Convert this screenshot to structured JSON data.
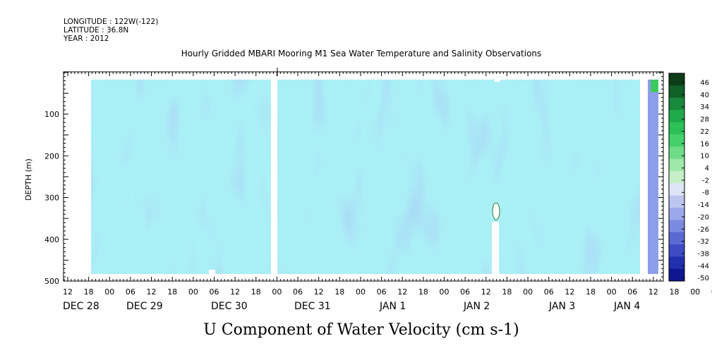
{
  "header": {
    "longitude": "LONGITUDE : 122W(-122)",
    "latitude": "LATITUDE : 36.8N",
    "year": "YEAR : 2012"
  },
  "chart_data": {
    "type": "heatmap",
    "title": "Hourly Gridded MBARI Mooring M1 Sea Water Temperature and Salinity Observations",
    "xlabel": "U Component of Water Velocity (cm s-1)",
    "ylabel": "DEPTH (m)",
    "y_ticks": [
      100,
      200,
      300,
      400,
      500
    ],
    "ylim": [
      500,
      0
    ],
    "x_hour_ticks": [
      "12",
      "18",
      "00",
      "06",
      "12",
      "18",
      "00",
      "06",
      "12",
      "18",
      "00",
      "06",
      "12",
      "18",
      "00",
      "06",
      "12",
      "18",
      "00",
      "06",
      "12",
      "18",
      "00",
      "06",
      "12",
      "18",
      "00",
      "06",
      "12",
      "18",
      "00",
      "06",
      "12",
      "18",
      "00",
      "06",
      "12"
    ],
    "x_day_labels": [
      {
        "label": "DEC 28",
        "hour_index": 0
      },
      {
        "label": "DEC 29",
        "hour_index": 4
      },
      {
        "label": "DEC 30",
        "hour_index": 8
      },
      {
        "label": "DEC 31",
        "hour_index": 12
      },
      {
        "label": "JAN  1",
        "hour_index": 16
      },
      {
        "label": "JAN  2",
        "hour_index": 20
      },
      {
        "label": "JAN  3",
        "hour_index": 24
      },
      {
        "label": "JAN  4",
        "hour_index": 28
      }
    ],
    "colorbar": {
      "labels": [
        "46",
        "40",
        "34",
        "28",
        "22",
        "16",
        "10",
        "4",
        "-2",
        "-8",
        "-14",
        "-20",
        "-26",
        "-32",
        "-38",
        "-44",
        "-50"
      ],
      "colors": [
        "#0d3d16",
        "#11612a",
        "#178a3d",
        "#1fa94a",
        "#2cc157",
        "#44d06b",
        "#6edb89",
        "#9ee8a9",
        "#c5f0c7",
        "#dde4f6",
        "#bcc6f0",
        "#9ca8ea",
        "#7c8ae0",
        "#5b6ad2",
        "#3d4cc4",
        "#2230b0",
        "#0f1690"
      ]
    },
    "missing_columns": [
      "DEC 30 22:00",
      "JAN 4 09:00"
    ],
    "value_range": [
      -50,
      46
    ]
  }
}
